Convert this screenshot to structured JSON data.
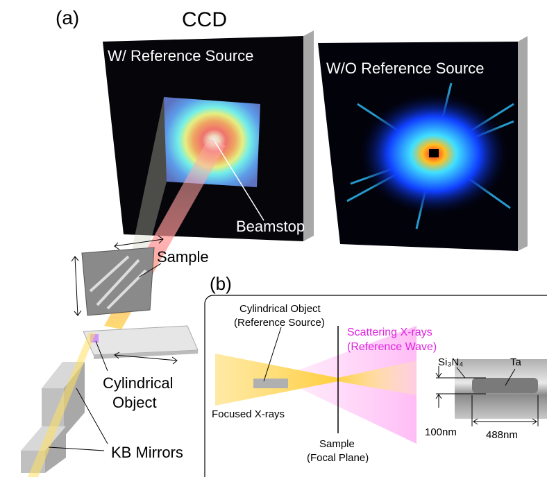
{
  "panel_a": {
    "label": "(a)",
    "detector_label": "CCD",
    "left_image_title": "W/ Reference Source",
    "right_image_title": "W/O Reference Source",
    "beamstop_label": "Beamstop",
    "sample_label": "Sample",
    "object_label": [
      "Cylindrical",
      "Object"
    ],
    "mirrors_label": "KB Mirrors"
  },
  "panel_b": {
    "label": "(b)",
    "object_label": [
      "Cylindrical Object",
      "(Reference Source)"
    ],
    "scattering_label": [
      "Scattering X-rays",
      "(Reference Wave)"
    ],
    "focused_label": "Focused X-rays",
    "sample_label": [
      "Sample",
      "(Focal Plane)"
    ],
    "sem": {
      "layer_label": "Si₃N₄",
      "metal_label": "Ta",
      "thickness_label": "100nm",
      "width_label": "488nm"
    }
  }
}
